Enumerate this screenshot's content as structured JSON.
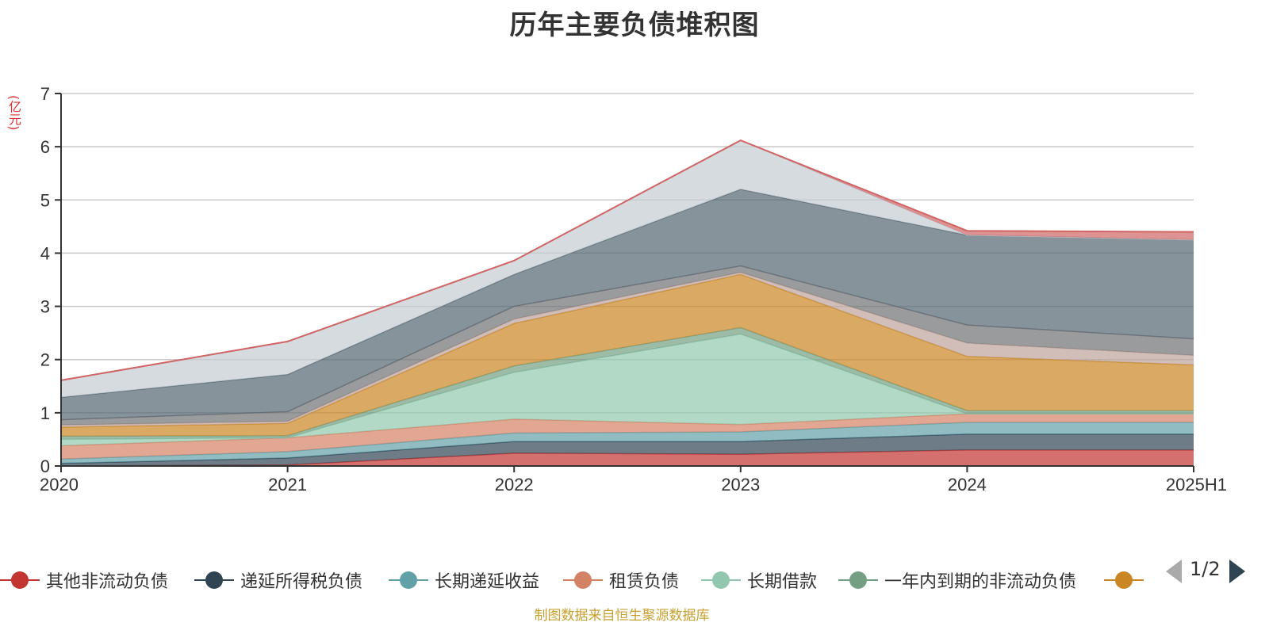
{
  "chart_data": {
    "type": "area",
    "stacked": true,
    "title": "历年主要负债堆积图",
    "unit": "(亿元)",
    "categories": [
      "2020",
      "2021",
      "2022",
      "2023",
      "2024",
      "2025H1"
    ],
    "ylim": [
      0,
      7
    ],
    "yticks": [
      0,
      1,
      2,
      3,
      4,
      5,
      6,
      7
    ],
    "grid": true,
    "series": [
      {
        "name": "其他非流动负债",
        "color": "#c23531",
        "values": [
          0.0,
          0.02,
          0.24,
          0.22,
          0.3,
          0.3
        ]
      },
      {
        "name": "递延所得税负债",
        "color": "#2f4554",
        "values": [
          0.05,
          0.13,
          0.22,
          0.24,
          0.3,
          0.3
        ]
      },
      {
        "name": "长期递延收益",
        "color": "#61a0a8",
        "values": [
          0.08,
          0.12,
          0.16,
          0.18,
          0.22,
          0.22
        ]
      },
      {
        "name": "租赁负债",
        "color": "#d48265",
        "values": [
          0.25,
          0.26,
          0.26,
          0.14,
          0.16,
          0.16
        ]
      },
      {
        "name": "长期借款",
        "color": "#91c7ae",
        "values": [
          0.12,
          0.0,
          0.88,
          1.7,
          0.0,
          0.0
        ]
      },
      {
        "name": "一年内到期的非流动负债",
        "color": "#749f83",
        "values": [
          0.06,
          0.04,
          0.12,
          0.12,
          0.06,
          0.06
        ]
      },
      {
        "name": "",
        "color": "#ca8622",
        "values": [
          0.17,
          0.23,
          0.8,
          1.0,
          1.02,
          0.86
        ]
      },
      {
        "name": "",
        "color": "#bda29a",
        "values": [
          0.04,
          0.04,
          0.08,
          0.04,
          0.25,
          0.18
        ]
      },
      {
        "name": "",
        "color": "#6e7074",
        "values": [
          0.1,
          0.18,
          0.24,
          0.12,
          0.34,
          0.31
        ]
      },
      {
        "name": "",
        "color": "#546570",
        "values": [
          0.42,
          0.7,
          0.6,
          1.44,
          1.69,
          1.86
        ]
      },
      {
        "name": "",
        "color": "#c4ccd3",
        "values": [
          0.32,
          0.62,
          0.26,
          0.92,
          0.0,
          0.0
        ]
      },
      {
        "name": "",
        "color": "#d06565",
        "values": [
          0.0,
          0.0,
          0.0,
          0.0,
          0.08,
          0.15
        ]
      }
    ],
    "legend_visible_count": 7
  },
  "legend": {
    "page_label": "1/2"
  },
  "source_note": "制图数据来自恒生聚源数据库"
}
